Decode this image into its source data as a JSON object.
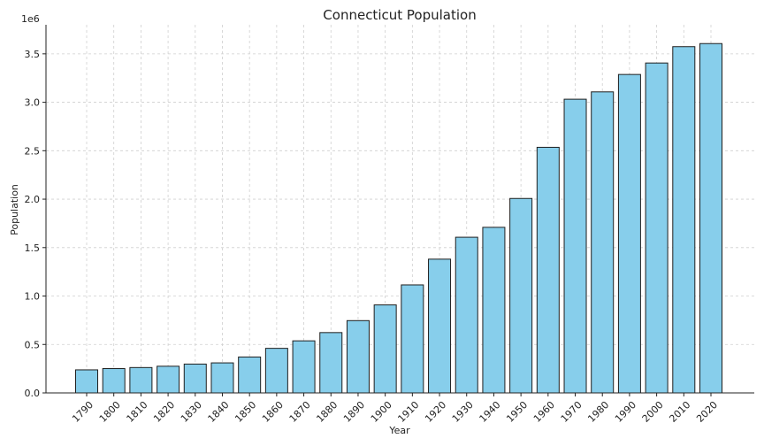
{
  "chart_data": {
    "type": "bar",
    "title": "Connecticut Population",
    "xlabel": "Year",
    "ylabel": "Population",
    "y_offset_label": "1e6",
    "ylim": [
      0,
      3.8
    ],
    "yticks": [
      0.0,
      0.5,
      1.0,
      1.5,
      2.0,
      2.5,
      3.0,
      3.5
    ],
    "ytick_labels": [
      "0.0",
      "0.5",
      "1.0",
      "1.5",
      "2.0",
      "2.5",
      "3.0",
      "3.5"
    ],
    "grid": true,
    "bar_color": "#87ceeb",
    "bar_edge_color": "#1f1f1f",
    "categories": [
      "1790",
      "1800",
      "1810",
      "1820",
      "1830",
      "1840",
      "1850",
      "1860",
      "1870",
      "1880",
      "1890",
      "1900",
      "1910",
      "1920",
      "1930",
      "1940",
      "1950",
      "1960",
      "1970",
      "1980",
      "1990",
      "2000",
      "2010",
      "2020"
    ],
    "values": [
      237946,
      251002,
      261942,
      275248,
      297675,
      309978,
      370792,
      460147,
      537454,
      622700,
      746258,
      908420,
      1114756,
      1380631,
      1606903,
      1709242,
      2007280,
      2535234,
      3031709,
      3107576,
      3287116,
      3405565,
      3574097,
      3605944
    ]
  }
}
